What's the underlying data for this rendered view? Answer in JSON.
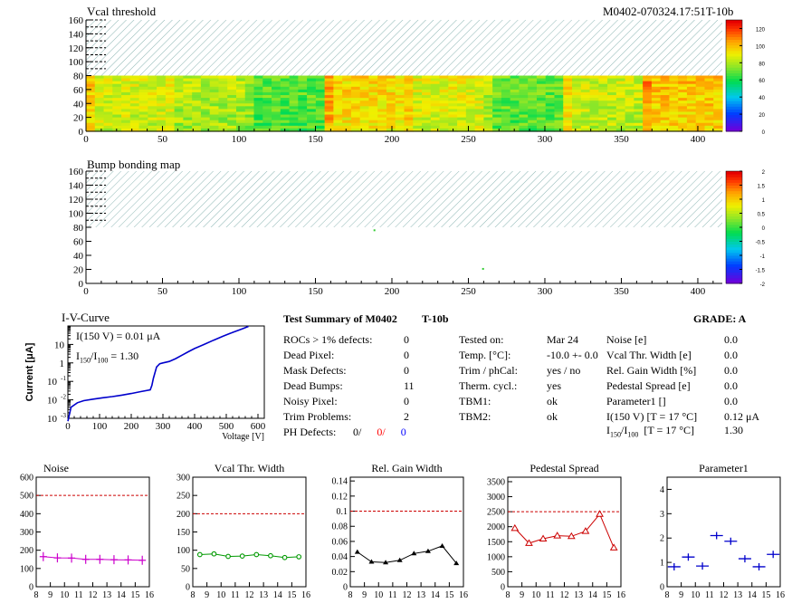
{
  "header": {
    "module_id": "M0402-070324.17:51T-10b"
  },
  "maps": [
    {
      "title": "Vcal threshold",
      "x_ticks": [
        "0",
        "50",
        "100",
        "150",
        "200",
        "250",
        "300",
        "350",
        "400"
      ],
      "y_ticks": [
        "0",
        "20",
        "40",
        "60",
        "80",
        "100",
        "120",
        "140",
        "160"
      ],
      "xlim": [
        0,
        416
      ],
      "ylim": [
        0,
        160
      ],
      "filled_rows": [
        0,
        80
      ],
      "palette_ticks": [
        "0",
        "20",
        "40",
        "60",
        "80",
        "100",
        "120"
      ],
      "palette_range": [
        0,
        130
      ],
      "roc_levels": [
        88,
        82,
        70,
        96,
        90,
        72,
        86,
        100
      ],
      "colors": {
        "hatch": "#5a9a98"
      }
    },
    {
      "title": "Bump bonding map",
      "x_ticks": [
        "0",
        "50",
        "100",
        "150",
        "200",
        "250",
        "300",
        "350",
        "400"
      ],
      "y_ticks": [
        "0",
        "20",
        "40",
        "60",
        "80",
        "100",
        "120",
        "140",
        "160"
      ],
      "xlim": [
        0,
        416
      ],
      "ylim": [
        0,
        160
      ],
      "palette_ticks": [
        "-2",
        "-1.5",
        "-1",
        "-0.5",
        "0",
        "0.5",
        "1",
        "1.5",
        "2"
      ],
      "palette_range": [
        -2,
        2
      ],
      "dots": [
        {
          "x": 188,
          "y": 77
        },
        {
          "x": 259,
          "y": 22
        }
      ],
      "colors": {
        "dot": "#33cc33"
      }
    }
  ],
  "iv_curve": {
    "title": "I-V-Curve",
    "xlabel": "Voltage [V]",
    "ylabel": "Current [μA]",
    "x_ticks": [
      "0",
      "100",
      "200",
      "300",
      "400",
      "500",
      "600"
    ],
    "annotation_1": "I(150 V) = 0.01 μA",
    "annotation_2_main": "I",
    "annotation_2_sub1": "150",
    "annotation_2_mid": "/I",
    "annotation_2_sub2": "100",
    "annotation_2_val": "=  1.30",
    "chart_data": {
      "type": "line",
      "xlim": [
        0,
        620
      ],
      "ylim_log10": [
        -3,
        2
      ],
      "x": [
        0,
        10,
        30,
        50,
        80,
        110,
        140,
        170,
        200,
        230,
        260,
        265,
        270,
        280,
        290,
        300,
        320,
        340,
        360,
        380,
        400,
        430,
        460,
        490,
        520,
        550,
        570
      ],
      "y": [
        0.0007,
        0.004,
        0.007,
        0.009,
        0.011,
        0.013,
        0.015,
        0.018,
        0.022,
        0.028,
        0.035,
        0.06,
        0.15,
        0.6,
        0.9,
        1.0,
        1.2,
        1.7,
        2.6,
        4.0,
        6.0,
        10,
        17,
        28,
        45,
        70,
        95
      ],
      "color": "#0000cc"
    }
  },
  "summary": {
    "title": "Test Summary of M0402",
    "module_tag": "T-10b",
    "grade": "GRADE:  A",
    "defects": [
      {
        "label": "ROCs > 1% defects:",
        "value": "0"
      },
      {
        "label": "Dead Pixel:",
        "value": "0"
      },
      {
        "label": "Mask Defects:",
        "value": "0"
      },
      {
        "label": "Dead Bumps:",
        "value": "11"
      },
      {
        "label": "Noisy Pixel:",
        "value": "0"
      },
      {
        "label": "Trim Problems:",
        "value": "2"
      }
    ],
    "ph_defects_label": "PH Defects:",
    "ph_values": [
      {
        "text": "0/",
        "color": "#000000"
      },
      {
        "text": "0/",
        "color": "#ff0000"
      },
      {
        "text": "0",
        "color": "#0000ff"
      }
    ],
    "conditions": [
      {
        "label": "Tested on:",
        "value": "Mar 24"
      },
      {
        "label": "Temp. [°C]:",
        "value": "-10.0 +- 0.0"
      },
      {
        "label": "Trim / phCal:",
        "value": "yes / no"
      },
      {
        "label": "Therm. cycl.:",
        "value": "yes"
      },
      {
        "label": "TBM1:",
        "value": "ok"
      },
      {
        "label": "TBM2:",
        "value": "ok"
      }
    ],
    "results": [
      {
        "label": "Noise [e]",
        "value": "0.0"
      },
      {
        "label": "Vcal Thr. Width [e]",
        "value": "0.0"
      },
      {
        "label": "Rel. Gain Width [%]",
        "value": "0.0"
      },
      {
        "label": "Pedestal Spread [e]",
        "value": "0.0"
      },
      {
        "label": "Parameter1 []",
        "value": "0.0"
      },
      {
        "label": "I(150 V) [T = 17 °C]",
        "value": "0.12 μA"
      }
    ],
    "ratio_label": {
      "main": "I",
      "sub1": "150",
      "mid": "/I",
      "sub2": "100",
      "rest": "  [T = 17 °C]",
      "value": "1.30"
    }
  },
  "bottom_plots": [
    {
      "title": "Noise",
      "x_ticks": [
        "8",
        "9",
        "10",
        "11",
        "12",
        "13",
        "14",
        "15",
        "16"
      ],
      "y_ticks": [
        "0",
        "100",
        "200",
        "300",
        "400",
        "500",
        "600"
      ],
      "xlim": [
        8,
        16
      ],
      "ylim": [
        0,
        600
      ],
      "ref": 500,
      "style": "cross",
      "color": "#cc00cc",
      "x": [
        8.5,
        9.5,
        10.5,
        11.5,
        12.5,
        13.5,
        14.5,
        15.5
      ],
      "y": [
        165,
        158,
        157,
        150,
        150,
        148,
        147,
        145
      ]
    },
    {
      "title": "Vcal Thr. Width",
      "x_ticks": [
        "8",
        "9",
        "10",
        "11",
        "12",
        "13",
        "14",
        "15",
        "16"
      ],
      "y_ticks": [
        "0",
        "50",
        "100",
        "150",
        "200",
        "250",
        "300"
      ],
      "xlim": [
        8,
        16
      ],
      "ylim": [
        0,
        300
      ],
      "ref": 200,
      "style": "circle",
      "color": "#009900",
      "x": [
        8.5,
        9.5,
        10.5,
        11.5,
        12.5,
        13.5,
        14.5,
        15.5
      ],
      "y": [
        88,
        90,
        83,
        84,
        88,
        85,
        80,
        82
      ]
    },
    {
      "title": "Rel. Gain Width",
      "x_ticks": [
        "8",
        "9",
        "10",
        "11",
        "12",
        "13",
        "14",
        "15",
        "16"
      ],
      "y_ticks": [
        "0",
        "0.02",
        "0.04",
        "0.06",
        "0.08",
        "0.1",
        "0.12",
        "0.14"
      ],
      "xlim": [
        8,
        16
      ],
      "ylim": [
        0,
        0.145
      ],
      "ref": 0.1,
      "style": "triangle",
      "color": "#000000",
      "x": [
        8.5,
        9.5,
        10.5,
        11.5,
        12.5,
        13.5,
        14.5,
        15.5
      ],
      "y": [
        0.046,
        0.033,
        0.032,
        0.035,
        0.044,
        0.047,
        0.054,
        0.031
      ]
    },
    {
      "title": "Pedestal Spread",
      "x_ticks": [
        "8",
        "9",
        "10",
        "11",
        "12",
        "13",
        "14",
        "15",
        "16"
      ],
      "y_ticks": [
        "0",
        "500",
        "1000",
        "1500",
        "2000",
        "2500",
        "3000",
        "3500"
      ],
      "xlim": [
        8,
        16
      ],
      "ylim": [
        0,
        3650
      ],
      "ref": 2500,
      "style": "triangle-open",
      "color": "#cc0000",
      "x": [
        8.5,
        9.5,
        10.5,
        11.5,
        12.5,
        13.5,
        14.5,
        15.5
      ],
      "y": [
        1950,
        1450,
        1600,
        1700,
        1680,
        1850,
        2420,
        1300
      ]
    },
    {
      "title": "Parameter1",
      "x_ticks": [
        "8",
        "9",
        "10",
        "11",
        "12",
        "13",
        "14",
        "15",
        "16"
      ],
      "y_ticks": [
        "0",
        "1",
        "2",
        "3",
        "4"
      ],
      "xlim": [
        8,
        16
      ],
      "ylim": [
        0,
        4.5
      ],
      "ref": null,
      "style": "hbar",
      "color": "#0000cc",
      "x": [
        8.5,
        9.5,
        10.5,
        11.5,
        12.5,
        13.5,
        14.5,
        15.5
      ],
      "y": [
        0.82,
        1.22,
        0.85,
        2.1,
        1.87,
        1.15,
        0.82,
        1.33
      ]
    }
  ]
}
